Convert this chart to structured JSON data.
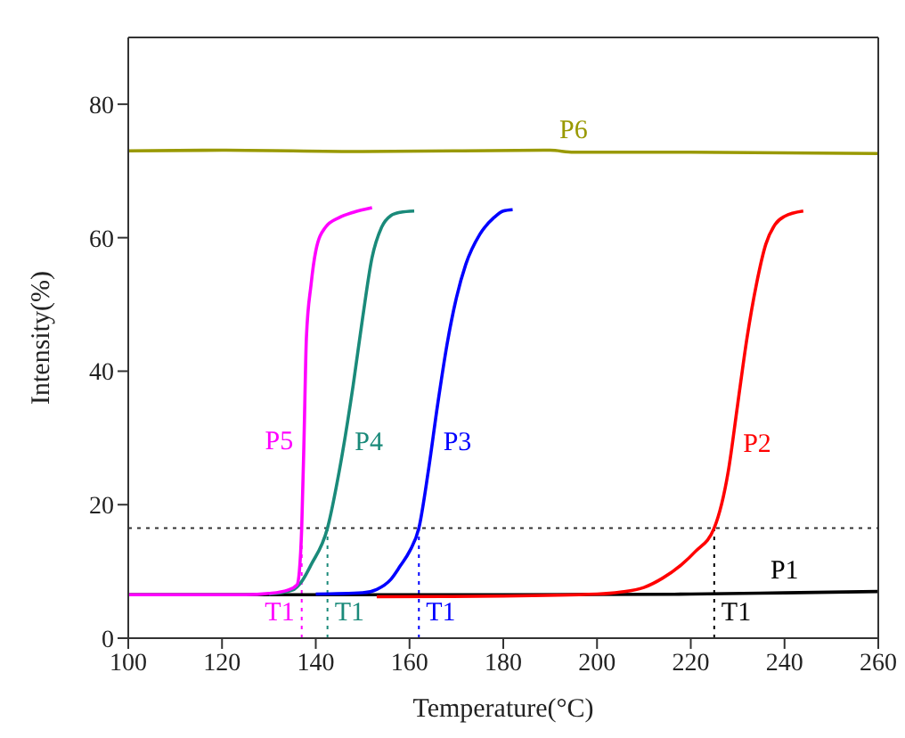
{
  "chart_data": {
    "type": "line",
    "xlabel": "Temperature(°C)",
    "ylabel": "Intensity(%)",
    "xlim": [
      100,
      260
    ],
    "ylim": [
      0,
      90
    ],
    "xticks": [
      100,
      120,
      140,
      160,
      180,
      200,
      220,
      240,
      260
    ],
    "yticks": [
      0,
      20,
      40,
      60,
      80
    ],
    "marker": "none",
    "line_style": "solid",
    "series": [
      {
        "name": "P1",
        "color": "#000000",
        "x": [
          100,
          140,
          180,
          220,
          240,
          260
        ],
        "values": [
          6.5,
          6.5,
          6.5,
          6.6,
          6.8,
          7.0
        ]
      },
      {
        "name": "P2",
        "color": "#ff0000",
        "x": [
          153,
          180,
          200,
          205,
          210,
          214,
          218,
          221,
          225,
          228,
          230,
          232,
          234,
          236,
          238,
          240,
          244
        ],
        "values": [
          6.2,
          6.3,
          6.6,
          6.9,
          7.6,
          9,
          11,
          13,
          16.5,
          25,
          35,
          45,
          53,
          59,
          62,
          63.2,
          64
        ]
      },
      {
        "name": "P3",
        "color": "#0000ff",
        "x": [
          140,
          150,
          153,
          156,
          158,
          160,
          162,
          164,
          166,
          168,
          170,
          172,
          175,
          178,
          180,
          182
        ],
        "values": [
          6.6,
          6.8,
          7.3,
          8.8,
          10.8,
          13,
          16.5,
          25,
          35,
          44,
          51,
          56,
          60.5,
          63,
          64,
          64.2
        ]
      },
      {
        "name": "P4",
        "color": "#1a8a7a",
        "x": [
          130,
          135,
          137,
          139,
          142.5,
          145,
          148,
          150,
          152,
          154,
          156,
          158,
          161
        ],
        "values": [
          6.6,
          7.2,
          8.5,
          11,
          16.5,
          25,
          38,
          48,
          57,
          61.5,
          63.3,
          63.8,
          64
        ]
      },
      {
        "name": "P5",
        "color": "#ff00ff",
        "x": [
          100,
          125,
          130,
          134,
          136,
          136.5,
          137,
          137.5,
          138,
          139,
          140,
          142,
          145,
          148,
          152
        ],
        "values": [
          6.5,
          6.5,
          6.7,
          7.2,
          8,
          10,
          16.5,
          30,
          45,
          53,
          58,
          61.5,
          63,
          63.8,
          64.5
        ]
      },
      {
        "name": "P6",
        "color": "#999900",
        "x": [
          100,
          120,
          150,
          190,
          195,
          220,
          260
        ],
        "values": [
          73,
          73.1,
          72.9,
          73.1,
          72.8,
          72.8,
          72.6
        ]
      }
    ],
    "ref_lines": [
      {
        "axis": "y",
        "value": 16.5,
        "color": "#333333",
        "line_style": "dotted"
      },
      {
        "axis": "x",
        "value": 137,
        "label": "T1",
        "color": "#ff00ff",
        "line_style": "dotted"
      },
      {
        "axis": "x",
        "value": 142.5,
        "label": "T1",
        "color": "#1a8a7a",
        "line_style": "dotted"
      },
      {
        "axis": "x",
        "value": 162,
        "label": "T1",
        "color": "#0000ff",
        "line_style": "dotted"
      },
      {
        "axis": "x",
        "value": 225,
        "label": "T1",
        "color": "#000000",
        "line_style": "dotted"
      }
    ]
  }
}
